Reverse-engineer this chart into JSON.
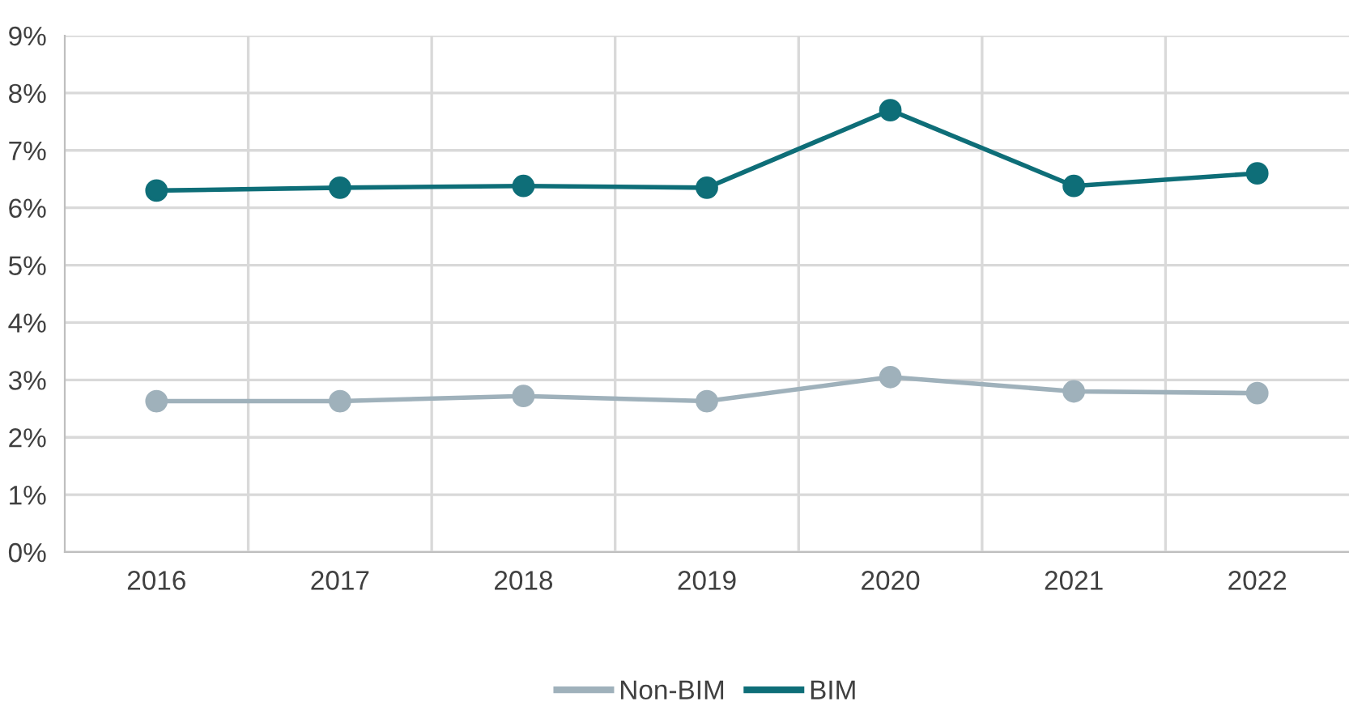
{
  "chart_data": {
    "type": "line",
    "categories": [
      "2016",
      "2017",
      "2018",
      "2019",
      "2020",
      "2021",
      "2022"
    ],
    "series": [
      {
        "name": "Non-BIM",
        "color": "#9fb1bb",
        "values": [
          2.63,
          2.63,
          2.72,
          2.63,
          3.05,
          2.8,
          2.77
        ]
      },
      {
        "name": "BIM",
        "color": "#0e6e78",
        "values": [
          6.3,
          6.35,
          6.38,
          6.35,
          7.7,
          6.38,
          6.6
        ]
      }
    ],
    "ylim": [
      0,
      9
    ],
    "yticks": [
      {
        "value": 0,
        "label": "0%"
      },
      {
        "value": 1,
        "label": "1%"
      },
      {
        "value": 2,
        "label": "2%"
      },
      {
        "value": 3,
        "label": "3%"
      },
      {
        "value": 4,
        "label": "4%"
      },
      {
        "value": 5,
        "label": "5%"
      },
      {
        "value": 6,
        "label": "6%"
      },
      {
        "value": 7,
        "label": "7%"
      },
      {
        "value": 8,
        "label": "8%"
      },
      {
        "value": 9,
        "label": "9%"
      }
    ],
    "grid": true,
    "legend": "bottom",
    "marker": "circle",
    "line_style": "solid"
  }
}
